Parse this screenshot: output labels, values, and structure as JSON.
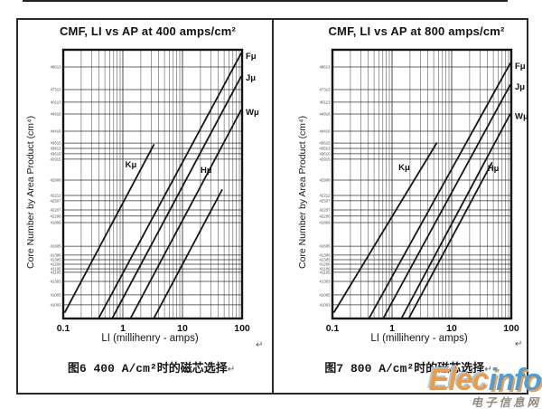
{
  "page": {
    "return_mark": "↵"
  },
  "watermark": {
    "part1": "Elec",
    "part2": "info",
    "subtitle": "电子信息网",
    "blue": "#4f9fd6",
    "orange": "#ee9b43",
    "subtitle_color": "#93897c"
  },
  "chart_data": [
    {
      "type": "line",
      "title": "CMF, LI vs AP at 400 amps/cm²",
      "xlabel": "LI (millihenry - amps)",
      "ylabel": "Core Number by Area Product (cm⁴)",
      "caption": "图6 400 A/cm²时的磁芯选择",
      "x_scale": "log",
      "xlim": [
        0.1,
        100
      ],
      "x_ticks": [
        0.1,
        1,
        10,
        100
      ],
      "grid": "on",
      "y_axis_note": "categorical: toroid core numbers ordered by area product; y values given as fraction of plot height",
      "core_numbers": [
        {
          "n": "48613",
          "y": 0.064
        },
        {
          "n": "47313",
          "y": 0.148
        },
        {
          "n": "46113",
          "y": 0.195
        },
        {
          "n": "44916",
          "y": 0.239
        },
        {
          "n": "44416",
          "y": 0.303
        },
        {
          "n": "43615",
          "y": 0.347
        },
        {
          "n": "43813",
          "y": 0.367
        },
        {
          "n": "43610",
          "y": 0.387
        },
        {
          "n": "42915",
          "y": 0.407
        },
        {
          "n": "42908",
          "y": 0.485
        },
        {
          "n": "42212",
          "y": 0.542
        },
        {
          "n": "42507",
          "y": 0.562
        },
        {
          "n": "42207",
          "y": 0.596
        },
        {
          "n": "42206",
          "y": 0.619
        },
        {
          "n": "41809",
          "y": 0.643
        },
        {
          "n": "41605",
          "y": 0.731
        },
        {
          "n": "41306",
          "y": 0.764
        },
        {
          "n": "41305",
          "y": 0.781
        },
        {
          "n": "41206",
          "y": 0.798
        },
        {
          "n": "41106",
          "y": 0.815
        },
        {
          "n": "41105",
          "y": 0.828
        },
        {
          "n": "41303",
          "y": 0.862
        },
        {
          "n": "41005",
          "y": 0.912
        },
        {
          "n": "41003",
          "y": 0.949
        }
      ],
      "series": [
        {
          "name": "Kμ",
          "pts": [
            [
              0.107,
              0.024
            ],
            [
              3.3,
              0.646
            ]
          ],
          "lab": {
            "li": 1.37,
            "y": 0.572
          }
        },
        {
          "name": "Fμ",
          "pts": [
            [
              0.39,
              0
            ],
            [
              96,
              0.986
            ]
          ],
          "lab": {
            "edge": true,
            "y": 0.976
          }
        },
        {
          "name": "Jμ",
          "pts": [
            [
              0.66,
              0
            ],
            [
              96,
              0.9
            ]
          ],
          "lab": {
            "edge": true,
            "y": 0.895
          }
        },
        {
          "name": "Wμ",
          "pts": [
            [
              1.34,
              0
            ],
            [
              96,
              0.775
            ]
          ],
          "lab": {
            "edge": true,
            "y": 0.768
          }
        },
        {
          "name": "Hμ",
          "pts": [
            [
              3.3,
              0
            ],
            [
              46,
              0.478
            ]
          ],
          "lab": {
            "li": 25,
            "y": 0.552
          }
        }
      ]
    },
    {
      "type": "line",
      "title": "CMF, LI vs AP at 800 amps/cm²",
      "xlabel": "LI (millihenry - amps)",
      "ylabel": "Core Number by Area Product (cm⁴)",
      "caption": "图7 800 A/cm²时的磁芯选择",
      "x_scale": "log",
      "xlim": [
        0.1,
        100
      ],
      "x_ticks": [
        0.1,
        1,
        10,
        100
      ],
      "grid": "on",
      "y_axis_note": "categorical: toroid core numbers ordered by area product; y values given as fraction of plot height",
      "core_numbers": [
        {
          "n": "48613",
          "y": 0.064
        },
        {
          "n": "47313",
          "y": 0.148
        },
        {
          "n": "46113",
          "y": 0.195
        },
        {
          "n": "44916",
          "y": 0.239
        },
        {
          "n": "44416",
          "y": 0.303
        },
        {
          "n": "43615",
          "y": 0.347
        },
        {
          "n": "43813",
          "y": 0.367
        },
        {
          "n": "43610",
          "y": 0.387
        },
        {
          "n": "42915",
          "y": 0.407
        },
        {
          "n": "42908",
          "y": 0.485
        },
        {
          "n": "42212",
          "y": 0.542
        },
        {
          "n": "42507",
          "y": 0.562
        },
        {
          "n": "42207",
          "y": 0.596
        },
        {
          "n": "42206",
          "y": 0.619
        },
        {
          "n": "41809",
          "y": 0.643
        },
        {
          "n": "41605",
          "y": 0.731
        },
        {
          "n": "41306",
          "y": 0.764
        },
        {
          "n": "41305",
          "y": 0.781
        },
        {
          "n": "41206",
          "y": 0.798
        },
        {
          "n": "41106",
          "y": 0.815
        },
        {
          "n": "41105",
          "y": 0.828
        },
        {
          "n": "41303",
          "y": 0.862
        },
        {
          "n": "41005",
          "y": 0.912
        },
        {
          "n": "41003",
          "y": 0.949
        }
      ],
      "series": [
        {
          "name": "Kμ",
          "pts": [
            [
              0.107,
              0.024
            ],
            [
              5.6,
              0.653
            ]
          ],
          "lab": {
            "li": 1.6,
            "y": 0.562
          }
        },
        {
          "name": "Fμ",
          "pts": [
            [
              0.41,
              0
            ],
            [
              96,
              0.949
            ]
          ],
          "lab": {
            "edge": true,
            "y": 0.94
          }
        },
        {
          "name": "Jμ",
          "pts": [
            [
              0.71,
              0
            ],
            [
              96,
              0.869
            ]
          ],
          "lab": {
            "edge": true,
            "y": 0.862
          }
        },
        {
          "name": "Wμ",
          "pts": [
            [
              1.43,
              0
            ],
            [
              96,
              0.761
            ]
          ],
          "lab": {
            "edge": true,
            "y": 0.752
          }
        },
        {
          "name": "Hμ",
          "pts": [
            [
              1.9,
              0
            ],
            [
              47,
              0.579
            ]
          ],
          "lab": {
            "li": 50,
            "y": 0.559
          }
        }
      ]
    }
  ]
}
